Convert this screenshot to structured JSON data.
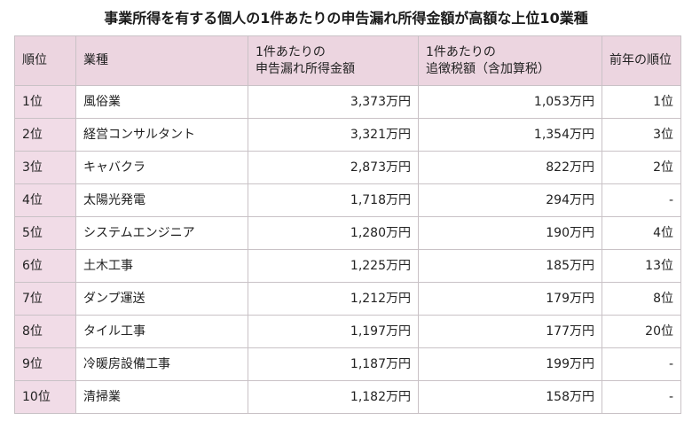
{
  "title": "事業所得を有する個人の1件あたりの申告漏れ所得金額が高額な上位10業種",
  "table": {
    "headers": {
      "rank": "順位",
      "industry": "業種",
      "undeclared_line1": "1件あたりの",
      "undeclared_line2": "申告漏れ所得金額",
      "tax_line1": "1件あたりの",
      "tax_line2": "追徴税額（含加算税）",
      "prev_rank": "前年の順位"
    },
    "rows": [
      {
        "rank": "1位",
        "industry": "風俗業",
        "undeclared": "3,373万円",
        "tax": "1,053万円",
        "prev_rank": "1位"
      },
      {
        "rank": "2位",
        "industry": "経営コンサルタント",
        "undeclared": "3,321万円",
        "tax": "1,354万円",
        "prev_rank": "3位"
      },
      {
        "rank": "3位",
        "industry": "キャバクラ",
        "undeclared": "2,873万円",
        "tax": "822万円",
        "prev_rank": "2位"
      },
      {
        "rank": "4位",
        "industry": "太陽光発電",
        "undeclared": "1,718万円",
        "tax": "294万円",
        "prev_rank": "-"
      },
      {
        "rank": "5位",
        "industry": "システムエンジニア",
        "undeclared": "1,280万円",
        "tax": "190万円",
        "prev_rank": "4位"
      },
      {
        "rank": "6位",
        "industry": "土木工事",
        "undeclared": "1,225万円",
        "tax": "185万円",
        "prev_rank": "13位"
      },
      {
        "rank": "7位",
        "industry": "ダンプ運送",
        "undeclared": "1,212万円",
        "tax": "179万円",
        "prev_rank": "8位"
      },
      {
        "rank": "8位",
        "industry": "タイル工事",
        "undeclared": "1,197万円",
        "tax": "177万円",
        "prev_rank": "20位"
      },
      {
        "rank": "9位",
        "industry": "冷暖房設備工事",
        "undeclared": "1,187万円",
        "tax": "199万円",
        "prev_rank": "-"
      },
      {
        "rank": "10位",
        "industry": "清掃業",
        "undeclared": "1,182万円",
        "tax": "158万円",
        "prev_rank": "-"
      }
    ]
  },
  "colors": {
    "header_background": "#ecd5e0",
    "rank_cell_background": "#f1dce7",
    "border": "#c9c2c6"
  }
}
